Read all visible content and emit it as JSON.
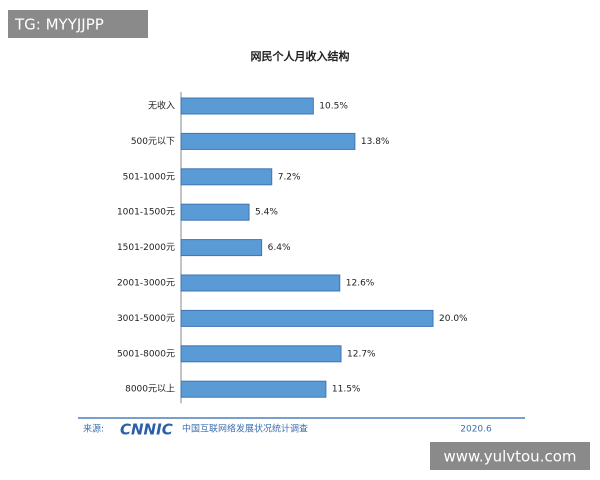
{
  "chart_data": {
    "type": "bar",
    "orientation": "horizontal",
    "title": "网民个人月收入结构",
    "categories": [
      "无收入",
      "500元以下",
      "501-1000元",
      "1001-1500元",
      "1501-2000元",
      "2001-3000元",
      "3001-5000元",
      "5001-8000元",
      "8000元以上"
    ],
    "values": [
      10.5,
      13.8,
      7.2,
      5.4,
      6.4,
      12.6,
      20.0,
      12.7,
      11.5
    ],
    "value_labels": [
      "10.5%",
      "13.8%",
      "7.2%",
      "5.4%",
      "6.4%",
      "12.6%",
      "20.0%",
      "12.7%",
      "11.5%"
    ],
    "color": "#5b9bd5",
    "source_label": "来源:",
    "source_logo": "CNNIC",
    "source": "中国互联网络发展状况统计调查",
    "date": "2020.6"
  },
  "overlays": {
    "top_left": "TG: MYYJJPP",
    "bottom_right": "www.yulvtou.com"
  }
}
